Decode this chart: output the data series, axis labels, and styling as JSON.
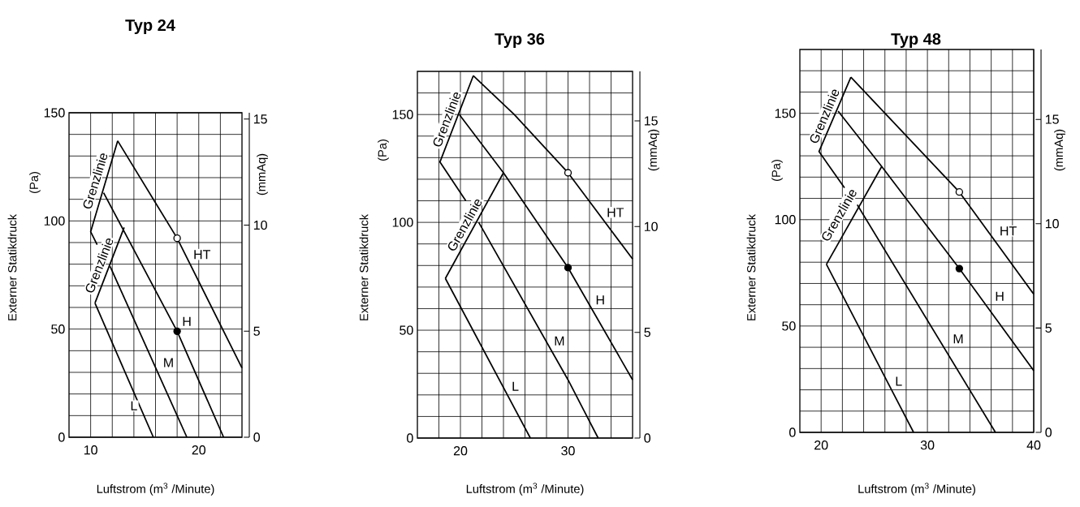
{
  "chart_data": [
    {
      "type": "line",
      "title": "Typ 24",
      "xlabel": "Luftstrom (m$^{3}$ /Minute)",
      "ylabel": "Externer Statikdruck",
      "y2label": "(mmAq)",
      "grid": true,
      "xlim": [
        8,
        24
      ],
      "ylim": [
        0,
        150
      ],
      "y2lim": [
        0,
        15.3
      ],
      "xticks": [
        10,
        {
          "value": 12,
          "label": null
        },
        {
          "value": 14,
          "label": null
        },
        {
          "value": 16,
          "label": null
        },
        {
          "value": 18,
          "label": null
        },
        20,
        {
          "value": 22,
          "label": null
        }
      ],
      "yticks": [
        0,
        {
          "value": 10,
          "label": null
        },
        {
          "value": 20,
          "label": null
        },
        {
          "value": 30,
          "label": null
        },
        {
          "value": 40,
          "label": null
        },
        50,
        {
          "value": 60,
          "label": null
        },
        {
          "value": 70,
          "label": null
        },
        {
          "value": 80,
          "label": null
        },
        {
          "value": 90,
          "label": null
        },
        100,
        {
          "value": 110,
          "label": null
        },
        {
          "value": 120,
          "label": null
        },
        {
          "value": 130,
          "label": null
        },
        {
          "value": 140,
          "label": null
        },
        150
      ],
      "y2ticks": [
        0,
        5,
        10,
        15
      ],
      "series": [
        {
          "color": "#000000",
          "x": [
            12.5,
            18,
            24
          ],
          "values": [
            137,
            92,
            32
          ]
        },
        {
          "color": "#000000",
          "x": [
            12.5,
            10,
            10.6
          ],
          "values": [
            137,
            95,
            89
          ]
        },
        {
          "color": "#000000",
          "x": [
            11.2,
            18,
            22.3
          ],
          "values": [
            113,
            49,
            0
          ]
        },
        {
          "color": "#000000",
          "x": [
            13.1,
            10.4
          ],
          "values": [
            97,
            62
          ]
        },
        {
          "color": "#000000",
          "x": [
            11.8,
            18.9
          ],
          "values": [
            79,
            0
          ]
        },
        {
          "color": "#000000",
          "x": [
            10.4,
            15.8
          ],
          "values": [
            62,
            0
          ]
        },
        {
          "type": "scatter",
          "color": "#ffffff",
          "x": [
            18
          ],
          "values": [
            92
          ]
        },
        {
          "type": "scatter",
          "color": "#000000",
          "x": [
            18
          ],
          "values": [
            49
          ]
        }
      ],
      "annotations": [
        "(Pa)",
        {
          "text": "HT",
          "x": 20.3,
          "y": 84.5
        },
        {
          "text": "H",
          "x": 18.9,
          "y": 53.5
        },
        {
          "text": "M",
          "x": 17.2,
          "y": 34.5
        },
        {
          "text": "L",
          "x": 14,
          "y": 14.5
        },
        "Grenzlinie",
        "Grenzlinie"
      ]
    },
    {
      "type": "line",
      "title": "Typ 36",
      "xlabel": "Luftstrom (m$^{3}$ /Minute)",
      "ylabel": "Externer Statikdruck",
      "y2label": "(mmAq)",
      "grid": true,
      "xlim": [
        16,
        36
      ],
      "ylim": [
        0,
        170
      ],
      "y2lim": [
        0,
        17.34
      ],
      "xticks": [
        {
          "value": 18,
          "label": null
        },
        20,
        {
          "value": 22,
          "label": null
        },
        {
          "value": 24,
          "label": null
        },
        {
          "value": 26,
          "label": null
        },
        {
          "value": 28,
          "label": null
        },
        30,
        {
          "value": 32,
          "label": null
        },
        {
          "value": 34,
          "label": null
        }
      ],
      "yticks": [
        0,
        {
          "value": 10,
          "label": null
        },
        {
          "value": 20,
          "label": null
        },
        {
          "value": 30,
          "label": null
        },
        {
          "value": 40,
          "label": null
        },
        50,
        {
          "value": 60,
          "label": null
        },
        {
          "value": 70,
          "label": null
        },
        {
          "value": 80,
          "label": null
        },
        {
          "value": 90,
          "label": null
        },
        100,
        {
          "value": 110,
          "label": null
        },
        {
          "value": 120,
          "label": null
        },
        {
          "value": 130,
          "label": null
        },
        {
          "value": 140,
          "label": null
        },
        150,
        {
          "value": 160,
          "label": null
        }
      ],
      "y2ticks": [
        0,
        5,
        10,
        15
      ],
      "series": [
        {
          "color": "#000000",
          "x": [
            21.2,
            25,
            30,
            36
          ],
          "values": [
            168,
            150,
            123,
            83
          ]
        },
        {
          "color": "#000000",
          "x": [
            21.2,
            18.1,
            20.5
          ],
          "values": [
            168,
            128,
            110
          ]
        },
        {
          "color": "#000000",
          "x": [
            19.9,
            24,
            30,
            36
          ],
          "values": [
            150,
            123,
            79,
            27
          ]
        },
        {
          "color": "#000000",
          "x": [
            24,
            18.6
          ],
          "values": [
            123,
            74
          ]
        },
        {
          "color": "#000000",
          "x": [
            21.7,
            30,
            32.8
          ],
          "values": [
            100,
            27,
            0
          ]
        },
        {
          "color": "#000000",
          "x": [
            18.6,
            26.5
          ],
          "values": [
            74,
            0
          ]
        },
        {
          "type": "scatter",
          "color": "#ffffff",
          "x": [
            30
          ],
          "values": [
            123
          ]
        },
        {
          "type": "scatter",
          "color": "#000000",
          "x": [
            30
          ],
          "values": [
            79
          ]
        }
      ],
      "annotations": [
        "(Pa)",
        {
          "text": "HT",
          "x": 34.4,
          "y": 104.6
        },
        {
          "text": "H",
          "x": 33,
          "y": 64
        },
        {
          "text": "M",
          "x": 29.2,
          "y": 45
        },
        {
          "text": "L",
          "x": 25.1,
          "y": 24
        },
        "Grenzlinie",
        "Grenzlinie"
      ]
    },
    {
      "type": "line",
      "title": "Typ 48",
      "xlabel": "Luftstrom (m$^{3}$ /Minute)",
      "ylabel": "Externer Statikdruck",
      "y2label": "(mmAq)",
      "grid": true,
      "xlim": [
        18,
        40
      ],
      "ylim": [
        0,
        180
      ],
      "y2lim": [
        0,
        18.35
      ],
      "xticks": [
        20,
        {
          "value": 22,
          "label": null
        },
        {
          "value": 24,
          "label": null
        },
        {
          "value": 26,
          "label": null
        },
        {
          "value": 28,
          "label": null
        },
        30,
        {
          "value": 32,
          "label": null
        },
        {
          "value": 34,
          "label": null
        },
        {
          "value": 36,
          "label": null
        },
        {
          "value": 38,
          "label": null
        },
        40
      ],
      "yticks": [
        0,
        {
          "value": 10,
          "label": null
        },
        {
          "value": 20,
          "label": null
        },
        {
          "value": 30,
          "label": null
        },
        {
          "value": 40,
          "label": null
        },
        50,
        {
          "value": 60,
          "label": null
        },
        {
          "value": 70,
          "label": null
        },
        {
          "value": 80,
          "label": null
        },
        {
          "value": 90,
          "label": null
        },
        100,
        {
          "value": 110,
          "label": null
        },
        {
          "value": 120,
          "label": null
        },
        {
          "value": 130,
          "label": null
        },
        {
          "value": 140,
          "label": null
        },
        150,
        {
          "value": 160,
          "label": null
        },
        {
          "value": 170,
          "label": null
        }
      ],
      "y2ticks": [
        0,
        5,
        10,
        15
      ],
      "series": [
        {
          "color": "#000000",
          "x": [
            22.8,
            33,
            40
          ],
          "values": [
            167,
            113,
            65
          ]
        },
        {
          "color": "#000000",
          "x": [
            22.8,
            19.8,
            22.2
          ],
          "values": [
            167,
            132,
            115
          ]
        },
        {
          "color": "#000000",
          "x": [
            21.6,
            25.7,
            33,
            40
          ],
          "values": [
            151,
            125,
            77,
            29
          ]
        },
        {
          "color": "#000000",
          "x": [
            25.7,
            20.5
          ],
          "values": [
            125,
            79
          ]
        },
        {
          "color": "#000000",
          "x": [
            23.4,
            36.4
          ],
          "values": [
            107,
            0
          ]
        },
        {
          "color": "#000000",
          "x": [
            20.5,
            28.7
          ],
          "values": [
            79,
            0
          ]
        },
        {
          "type": "scatter",
          "color": "#ffffff",
          "x": [
            33
          ],
          "values": [
            113
          ]
        },
        {
          "type": "scatter",
          "color": "#000000",
          "x": [
            33
          ],
          "values": [
            77
          ]
        }
      ],
      "annotations": [
        "(Pa)",
        {
          "text": "HT",
          "x": 37.6,
          "y": 94.7
        },
        {
          "text": "H",
          "x": 36.8,
          "y": 64
        },
        {
          "text": "M",
          "x": 32.9,
          "y": 44
        },
        {
          "text": "L",
          "x": 27.3,
          "y": 24
        },
        "Grenzlinie",
        "Grenzlinie"
      ]
    }
  ]
}
